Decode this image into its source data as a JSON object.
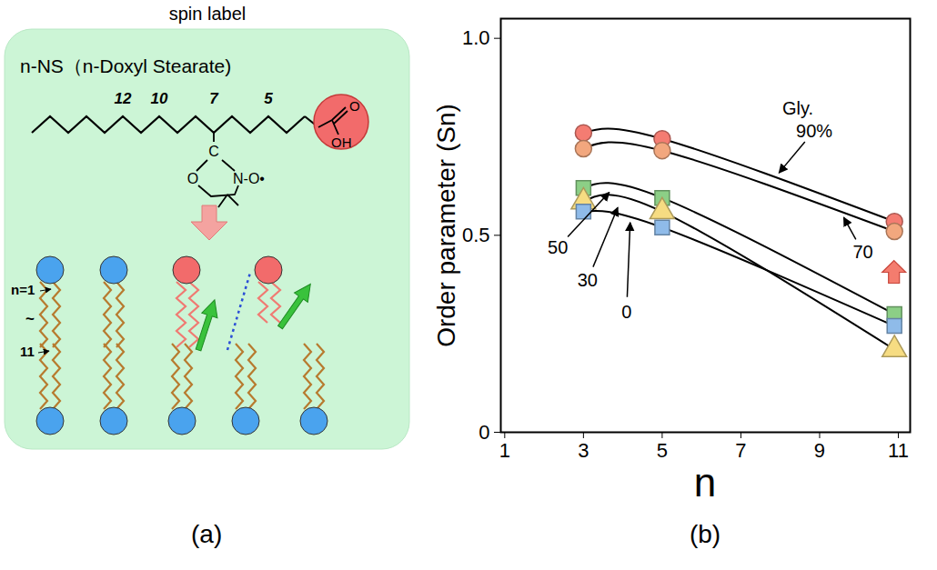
{
  "diagram": {
    "panel_label": "(a)",
    "title": "spin label",
    "molecule_name": "n-NS（n-Doxyl Stearate)",
    "carbon_numbers": [
      "12",
      "10",
      "7",
      "5"
    ],
    "carbon_atom": "C",
    "ring_oxygen": "O",
    "nitroxide": "N-O•",
    "acid_group": [
      "O",
      "OH"
    ],
    "depth_labels": [
      "n=1",
      "~",
      "11"
    ]
  },
  "chart_data": {
    "panel_label": "(b)",
    "type": "line",
    "x_label": "n",
    "y_label": "Order parameter (Sn)",
    "series_title": "Gly.",
    "xlim": [
      0.9,
      11.3
    ],
    "xticks": [
      1,
      3,
      5,
      7,
      9,
      11
    ],
    "ylim": [
      0,
      1.05
    ],
    "yticks": [
      0,
      0.5,
      {
        "value": 1,
        "label": "1.0"
      }
    ],
    "x": [
      3,
      5,
      10.9
    ],
    "series": [
      {
        "name": "90%",
        "color": "#f47c72",
        "marker": "circle",
        "values": [
          0.76,
          0.745,
          0.535
        ]
      },
      {
        "name": "70",
        "color": "#f2a77e",
        "marker": "circle",
        "values": [
          0.72,
          0.715,
          0.51
        ]
      },
      {
        "name": "50",
        "color": "#8ccf86",
        "marker": "square",
        "values": [
          0.62,
          0.595,
          0.3
        ]
      },
      {
        "name": "30",
        "color": "#f6dc82",
        "marker": "triangle",
        "values": [
          0.585,
          0.56,
          0.21
        ]
      },
      {
        "name": "0",
        "color": "#8fbbe9",
        "marker": "square",
        "values": [
          0.56,
          0.52,
          0.27
        ]
      }
    ]
  }
}
